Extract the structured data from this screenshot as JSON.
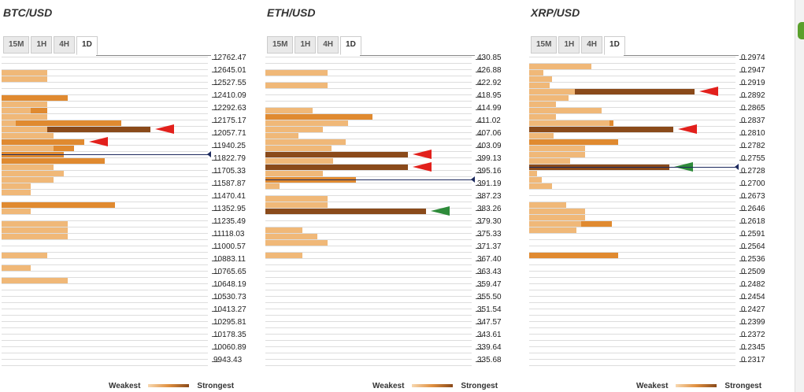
{
  "legend": {
    "weakest": "Weakest",
    "strongest": "Strongest"
  },
  "colors": {
    "light": "#f0b878",
    "mid": "#e08a30",
    "dark": "#8a4a1a",
    "red": "#e2201c",
    "green": "#2e8b3a",
    "current": "#1d2a5e"
  },
  "panels": [
    {
      "title": "BTC/USD",
      "tabs": [
        "15M",
        "1H",
        "4H",
        "1D"
      ],
      "active_tab": "1D",
      "prices": [
        "12762.47",
        "12645.01",
        "12527.55",
        "12410.09",
        "12292.63",
        "12175.17",
        "12057.71",
        "11940.25",
        "11822.79",
        "11705.33",
        "11587.87",
        "11470.41",
        "11352.95",
        "11235.49",
        "11118.03",
        "11000.57",
        "10883.11",
        "10765.65",
        "10648.19",
        "10530.73",
        "10413.27",
        "10295.81",
        "10178.35",
        "10060.89",
        "9943.43"
      ],
      "bars": [
        [
          2,
          1,
          0.22
        ],
        [
          3,
          1,
          0.22
        ],
        [
          6,
          2,
          0.32
        ],
        [
          7,
          1,
          0.22
        ],
        [
          8,
          2,
          0.22
        ],
        [
          8,
          1,
          0.14
        ],
        [
          9,
          1,
          0.22
        ],
        [
          10,
          2,
          0.58
        ],
        [
          10,
          1,
          0.07
        ],
        [
          11,
          4,
          0.72
        ],
        [
          11,
          1,
          0.22
        ],
        [
          12,
          1,
          0.25
        ],
        [
          13,
          2,
          0.4
        ],
        [
          14,
          2,
          0.35
        ],
        [
          14,
          1,
          0.25
        ],
        [
          15,
          2,
          0.3
        ],
        [
          16,
          2,
          0.5
        ],
        [
          17,
          1,
          0.25
        ],
        [
          17,
          1,
          0.25
        ],
        [
          18,
          1,
          0.3
        ],
        [
          18,
          1,
          0.25
        ],
        [
          19,
          1,
          0.25
        ],
        [
          20,
          1,
          0.14
        ],
        [
          21,
          1,
          0.14
        ],
        [
          23,
          2,
          0.55
        ],
        [
          24,
          1,
          0.14
        ],
        [
          26,
          1,
          0.32
        ],
        [
          26,
          1,
          0.32
        ],
        [
          27,
          1,
          0.32
        ],
        [
          28,
          1,
          0.32
        ],
        [
          31,
          1,
          0.22
        ],
        [
          33,
          1,
          0.14
        ],
        [
          35,
          1,
          0.32
        ]
      ],
      "arrows": [
        {
          "row": 11,
          "color": "red"
        },
        {
          "row": 13,
          "color": "red"
        }
      ],
      "current_row": 15.5
    },
    {
      "title": "ETH/USD",
      "tabs": [
        "15M",
        "1H",
        "4H",
        "1D"
      ],
      "active_tab": "1D",
      "prices": [
        "430.85",
        "426.88",
        "422.92",
        "418.95",
        "414.99",
        "411.02",
        "407.06",
        "403.09",
        "399.13",
        "395.16",
        "391.19",
        "387.23",
        "383.26",
        "379.30",
        "375.33",
        "371.37",
        "367.40",
        "363.43",
        "359.47",
        "355.50",
        "351.54",
        "347.57",
        "343.61",
        "339.64",
        "335.68"
      ],
      "bars": [
        [
          2,
          1,
          0.3
        ],
        [
          4,
          1,
          0.3
        ],
        [
          8,
          1,
          0.23
        ],
        [
          9,
          1,
          0.27
        ],
        [
          9,
          2,
          0.52
        ],
        [
          10,
          1,
          0.19
        ],
        [
          10,
          1,
          0.4
        ],
        [
          11,
          1,
          0.28
        ],
        [
          12,
          1,
          0.16
        ],
        [
          13,
          1,
          0.39
        ],
        [
          14,
          1,
          0.32
        ],
        [
          15,
          4,
          0.69
        ],
        [
          16,
          1,
          0.33
        ],
        [
          16,
          1,
          0.32
        ],
        [
          17,
          1,
          0.37
        ],
        [
          17,
          4,
          0.69
        ],
        [
          18,
          1,
          0.28
        ],
        [
          19,
          1,
          0.08
        ],
        [
          19,
          2,
          0.44
        ],
        [
          20,
          1,
          0.07
        ],
        [
          22,
          1,
          0.3
        ],
        [
          23,
          1,
          0.19
        ],
        [
          23,
          1,
          0.3
        ],
        [
          24,
          4,
          0.78
        ],
        [
          27,
          1,
          0.18
        ],
        [
          28,
          1,
          0.25
        ],
        [
          29,
          1,
          0.3
        ],
        [
          31,
          1,
          0.18
        ]
      ],
      "arrows": [
        {
          "row": 15,
          "color": "red"
        },
        {
          "row": 17,
          "color": "red"
        },
        {
          "row": 24,
          "color": "green"
        }
      ],
      "current_row": 19.5
    },
    {
      "title": "XRP/USD",
      "tabs": [
        "15M",
        "1H",
        "4H",
        "1D"
      ],
      "active_tab": "1D",
      "prices": [
        "0.2974",
        "0.2947",
        "0.2919",
        "0.2892",
        "0.2865",
        "0.2837",
        "0.2810",
        "0.2782",
        "0.2755",
        "0.2728",
        "0.2700",
        "0.2673",
        "0.2646",
        "0.2618",
        "0.2591",
        "0.2564",
        "0.2536",
        "0.2509",
        "0.2482",
        "0.2454",
        "0.2427",
        "0.2399",
        "0.2372",
        "0.2345",
        "0.2317"
      ],
      "bars": [
        [
          1,
          1,
          0.3
        ],
        [
          1,
          1,
          0.22
        ],
        [
          2,
          1,
          0.07
        ],
        [
          3,
          1,
          0.11
        ],
        [
          4,
          1,
          0.1
        ],
        [
          5,
          4,
          0.8
        ],
        [
          5,
          1,
          0.22
        ],
        [
          6,
          1,
          0.19
        ],
        [
          7,
          1,
          0.13
        ],
        [
          8,
          1,
          0.15
        ],
        [
          8,
          1,
          0.35
        ],
        [
          9,
          1,
          0.13
        ],
        [
          10,
          2,
          0.41
        ],
        [
          10,
          1,
          0.39
        ],
        [
          11,
          4,
          0.7
        ],
        [
          12,
          1,
          0.12
        ],
        [
          13,
          1,
          0.13
        ],
        [
          13,
          2,
          0.43
        ],
        [
          14,
          1,
          0.12
        ],
        [
          14,
          1,
          0.27
        ],
        [
          15,
          1,
          0.27
        ],
        [
          16,
          1,
          0.03
        ],
        [
          16,
          1,
          0.2
        ],
        [
          17,
          1,
          0.1
        ],
        [
          17,
          4,
          0.68
        ],
        [
          18,
          1,
          0.04
        ],
        [
          19,
          1,
          0.06
        ],
        [
          20,
          1,
          0.11
        ],
        [
          23,
          1,
          0.18
        ],
        [
          24,
          1,
          0.27
        ],
        [
          25,
          1,
          0.18
        ],
        [
          25,
          1,
          0.27
        ],
        [
          26,
          2,
          0.4
        ],
        [
          26,
          1,
          0.25
        ],
        [
          27,
          1,
          0.23
        ],
        [
          31,
          2,
          0.43
        ]
      ],
      "arrows": [
        {
          "row": 5,
          "color": "red"
        },
        {
          "row": 11,
          "color": "red"
        },
        {
          "row": 17,
          "color": "green"
        }
      ],
      "current_row": 17.5
    }
  ]
}
